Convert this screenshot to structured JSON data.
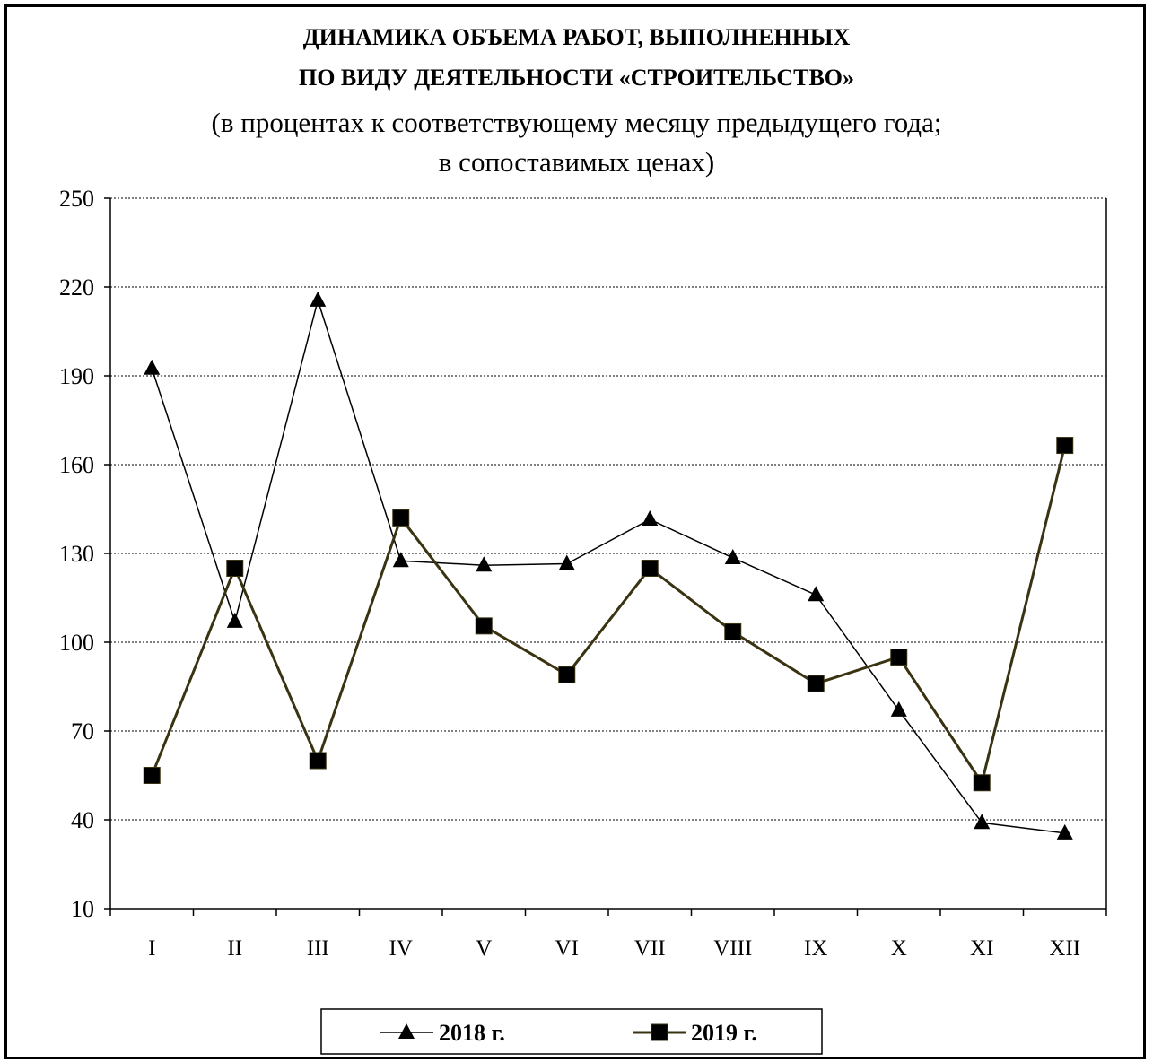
{
  "chart_data": {
    "type": "line",
    "title_line1": "ДИНАМИКА ОБЪЕМА РАБОТ, ВЫПОЛНЕННЫХ",
    "title_line2": "ПО ВИДУ ДЕЯТЕЛЬНОСТИ «СТРОИТЕЛЬСТВО»",
    "subtitle_line1": "(в процентах к соответствующему месяцу предыдущего года;",
    "subtitle_line2": "в сопоставимых ценах)",
    "categories": [
      "I",
      "II",
      "III",
      "IV",
      "V",
      "VI",
      "VII",
      "VIII",
      "IX",
      "X",
      "XI",
      "XII"
    ],
    "ylim": [
      10,
      250
    ],
    "yticks": [
      10,
      40,
      70,
      100,
      130,
      160,
      190,
      220,
      250
    ],
    "grid": true,
    "legend": "bottom",
    "series": [
      {
        "name": "2018 г.",
        "marker": "triangle",
        "color": "#000000",
        "values": [
          192.5,
          107,
          215.5,
          127.5,
          126,
          126.5,
          141.5,
          128.5,
          116,
          77,
          39,
          35.5
        ]
      },
      {
        "name": "2019 г.",
        "marker": "square",
        "color": "#3a3312",
        "values": [
          55,
          125,
          60,
          142,
          105.5,
          89,
          125,
          103.5,
          86,
          95,
          52.5,
          166.5
        ]
      }
    ]
  }
}
